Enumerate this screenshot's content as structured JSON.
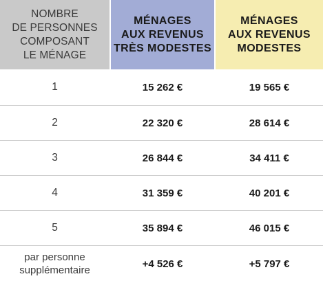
{
  "headers": {
    "persons": [
      "NOMBRE",
      "DE PERSONNES",
      "COMPOSANT",
      "LE MÉNAGE"
    ],
    "very_modest": [
      "MÉNAGES",
      "AUX REVENUS",
      "TRÈS MODESTES"
    ],
    "modest": [
      "MÉNAGES",
      "AUX REVENUS",
      "MODESTES"
    ]
  },
  "rows": [
    {
      "persons": "1",
      "very_modest": "15 262 €",
      "modest": "19 565 €"
    },
    {
      "persons": "2",
      "very_modest": "22 320 €",
      "modest": "28 614 €"
    },
    {
      "persons": "3",
      "very_modest": "26 844 €",
      "modest": "34 411 €"
    },
    {
      "persons": "4",
      "very_modest": "31 359 €",
      "modest": "40 201 €"
    },
    {
      "persons": "5",
      "very_modest": "35 894 €",
      "modest": "46 015 €"
    }
  ],
  "extra_row": {
    "persons": [
      "par personne",
      "supplémentaire"
    ],
    "very_modest": "+4 526 €",
    "modest": "+5 797 €"
  },
  "colors": {
    "persons_header_bg": "#c9c9c9",
    "very_modest_header_bg": "#a2acd6",
    "modest_header_bg": "#f6edb1",
    "row_divider": "#cfcfcf"
  }
}
